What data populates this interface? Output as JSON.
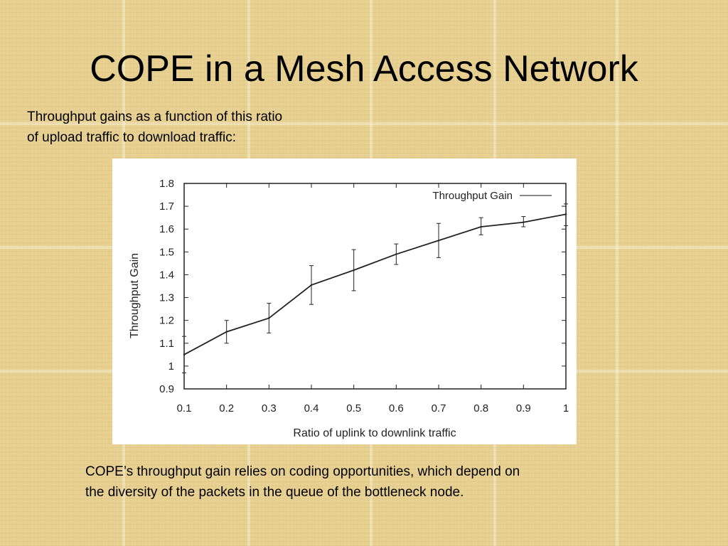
{
  "slide": {
    "title": "COPE in a Mesh Access Network",
    "intro_line1": "Throughput gains as a function of this ratio",
    "intro_line2": "of upload traffic to download traffic:",
    "caption_line1": "COPE’s throughput gain relies on coding opportunities, which depend on",
    "caption_line2": "the diversity of the packets in the queue of the bottleneck node."
  },
  "chart_data": {
    "type": "line",
    "xlabel": "Ratio of uplink to downlink traffic",
    "ylabel": "Throughput Gain",
    "xlim": [
      0.1,
      1
    ],
    "ylim": [
      0.9,
      1.8
    ],
    "x_ticks": [
      "0.1",
      "0.2",
      "0.3",
      "0.4",
      "0.5",
      "0.6",
      "0.7",
      "0.8",
      "0.9",
      "1"
    ],
    "y_ticks": [
      "0.9",
      "1",
      "1.1",
      "1.2",
      "1.3",
      "1.4",
      "1.5",
      "1.6",
      "1.7",
      "1.8"
    ],
    "grid": false,
    "legend": "top-right",
    "series": [
      {
        "name": "Throughput Gain",
        "x": [
          0.1,
          0.2,
          0.3,
          0.4,
          0.5,
          0.6,
          0.7,
          0.8,
          0.9,
          1.0
        ],
        "y": [
          1.05,
          1.15,
          1.21,
          1.355,
          1.42,
          1.49,
          1.55,
          1.61,
          1.63,
          1.665
        ],
        "err_low": [
          0.97,
          1.1,
          1.145,
          1.27,
          1.33,
          1.445,
          1.475,
          1.575,
          1.61,
          1.615
        ],
        "err_high": [
          1.13,
          1.2,
          1.275,
          1.44,
          1.51,
          1.535,
          1.625,
          1.65,
          1.655,
          1.71
        ]
      }
    ],
    "colors": {
      "line": "#222222",
      "legend_line": "#888888"
    }
  }
}
